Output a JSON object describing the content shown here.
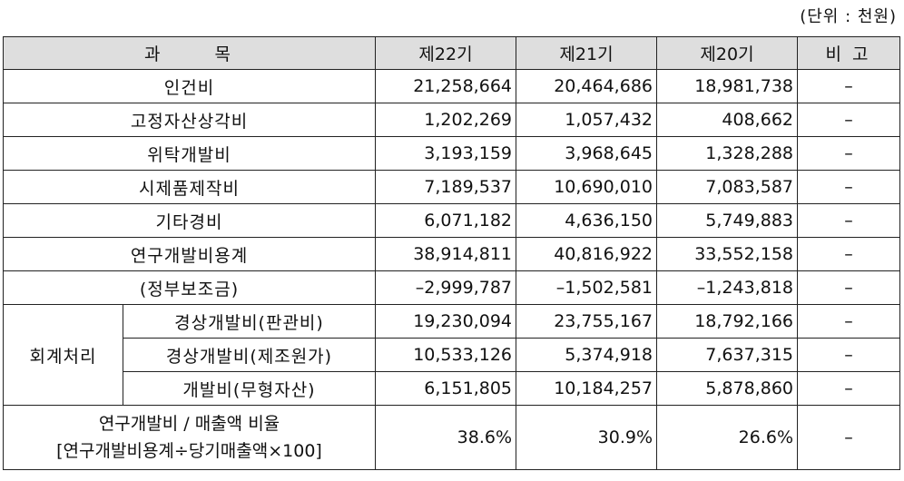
{
  "unit_note": "(단위 : 천원)",
  "headers": {
    "subject": "과목",
    "y22": "제22기",
    "y21": "제21기",
    "y20": "제20기",
    "note": "비고"
  },
  "rows": [
    {
      "label": "인건비",
      "y22": "21,258,664",
      "y21": "20,464,686",
      "y20": "18,981,738",
      "note": "–"
    },
    {
      "label": "고정자산상각비",
      "y22": "1,202,269",
      "y21": "1,057,432",
      "y20": "408,662",
      "note": "–"
    },
    {
      "label": "위탁개발비",
      "y22": "3,193,159",
      "y21": "3,968,645",
      "y20": "1,328,288",
      "note": "–"
    },
    {
      "label": "시제품제작비",
      "y22": "7,189,537",
      "y21": "10,690,010",
      "y20": "7,083,587",
      "note": "–"
    },
    {
      "label": "기타경비",
      "y22": "6,071,182",
      "y21": "4,636,150",
      "y20": "5,749,883",
      "note": "–"
    },
    {
      "label": "연구개발비용계",
      "y22": "38,914,811",
      "y21": "40,816,922",
      "y20": "33,552,158",
      "note": "–"
    },
    {
      "label": "(정부보조금)",
      "y22": "–2,999,787",
      "y21": "–1,502,581",
      "y20": "–1,243,818",
      "note": "–"
    }
  ],
  "accounting": {
    "group_label": "회계처리",
    "rows": [
      {
        "label": "경상개발비(판관비)",
        "y22": "19,230,094",
        "y21": "23,755,167",
        "y20": "18,792,166",
        "note": "–"
      },
      {
        "label": "경상개발비(제조원가)",
        "y22": "10,533,126",
        "y21": "5,374,918",
        "y20": "7,637,315",
        "note": "–"
      },
      {
        "label": "개발비(무형자산)",
        "y22": "6,151,805",
        "y21": "10,184,257",
        "y20": "5,878,860",
        "note": "–"
      }
    ]
  },
  "ratio": {
    "label_line1": "연구개발비 / 매출액 비율",
    "label_line2": "[연구개발비용계÷당기매출액×100]",
    "y22": "38.6%",
    "y21": "30.9%",
    "y20": "26.6%",
    "note": "–"
  }
}
